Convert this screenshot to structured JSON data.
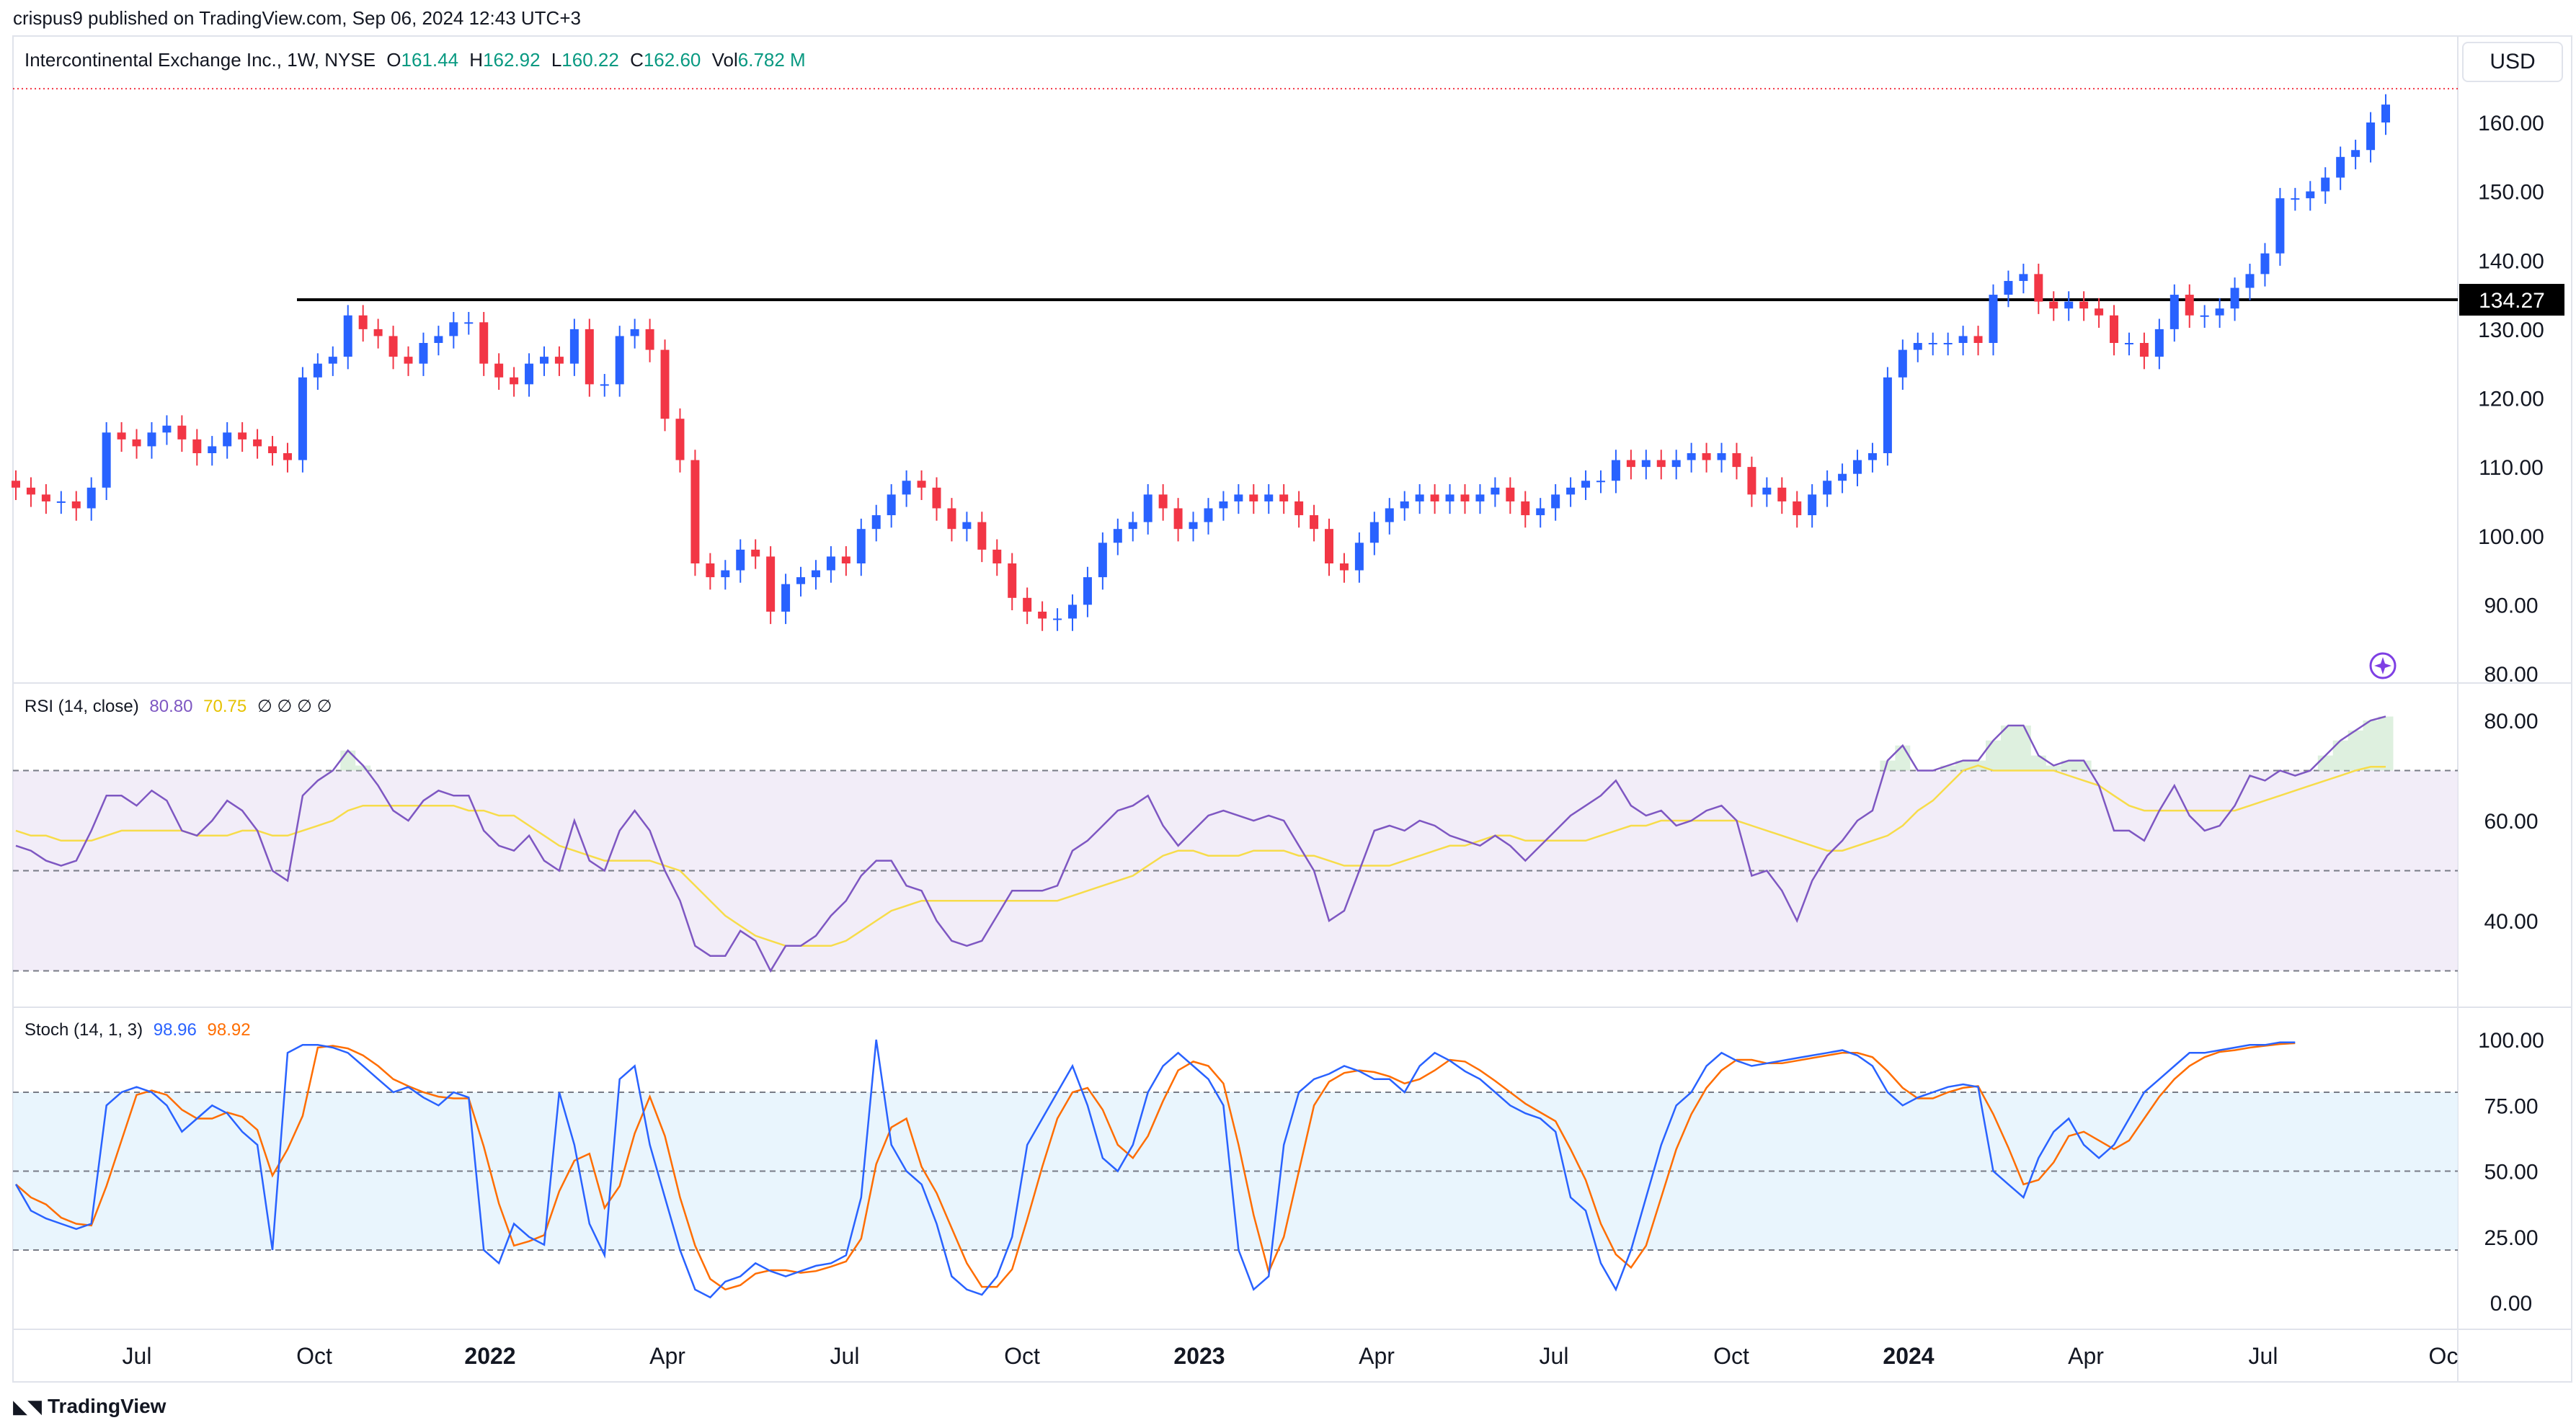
{
  "header": {
    "published": "crispus9 published on TradingView.com, Sep 06, 2024 12:43 UTC+3"
  },
  "symbol": {
    "name": "Intercontinental Exchange Inc., 1W, NYSE",
    "open_label": "O",
    "open": "161.44",
    "high_label": "H",
    "high": "162.92",
    "low_label": "L",
    "low": "160.22",
    "close_label": "C",
    "close": "162.60",
    "vol_label": "Vol",
    "vol": "6.782 M"
  },
  "currency": "USD",
  "price_axis_labels": [
    "160.00",
    "150.00",
    "140.00",
    "130.00",
    "120.00",
    "110.00",
    "100.00",
    "90.00",
    "80.00"
  ],
  "horizontal_line_label": "134.27",
  "rsi": {
    "title": "RSI (14, close)",
    "value": "80.80",
    "ma_value": "70.75",
    "extra": "∅ ∅ ∅ ∅",
    "axis_labels": [
      "80.00",
      "60.00",
      "40.00"
    ]
  },
  "stoch": {
    "title": "Stoch (14, 1, 3)",
    "k_value": "98.96",
    "d_value": "98.92",
    "axis_labels": [
      "100.00",
      "75.00",
      "50.00",
      "25.00",
      "0.00"
    ]
  },
  "time_axis_labels": [
    "Jul",
    "Oct",
    "2022",
    "Apr",
    "Jul",
    "Oct",
    "2023",
    "Apr",
    "Jul",
    "Oct",
    "2024",
    "Apr",
    "Jul",
    "Oc"
  ],
  "footer": {
    "brand": "TradingView",
    "logo_icon": "tradingview-logo-icon"
  },
  "colors": {
    "up": "#2962ff",
    "down": "#f23645",
    "rsi": "#7e57c2",
    "rsi_ma": "#f7dc4a",
    "stoch_k": "#2962ff",
    "stoch_d": "#ff6d00"
  },
  "chart_data": [
    {
      "type": "candlestick",
      "title": "Intercontinental Exchange Inc., 1W, NYSE",
      "ylim": [
        80,
        165
      ],
      "horizontal_line": 134.27,
      "x_start": "2021-05-03",
      "x_step_days": 7,
      "closes": [
        107,
        106,
        105,
        105,
        104,
        107,
        115,
        114,
        113,
        115,
        116,
        114,
        112,
        113,
        115,
        114,
        113,
        112,
        111,
        123,
        125,
        126,
        132,
        130,
        129,
        126,
        125,
        128,
        129,
        131,
        131,
        125,
        123,
        122,
        125,
        126,
        125,
        130,
        122,
        122,
        129,
        130,
        127,
        117,
        111,
        96,
        94,
        95,
        98,
        97,
        89,
        93,
        94,
        95,
        97,
        96,
        101,
        103,
        106,
        108,
        107,
        104,
        101,
        102,
        98,
        96,
        91,
        89,
        88,
        88,
        90,
        94,
        99,
        101,
        102,
        106,
        104,
        101,
        102,
        104,
        105,
        106,
        105,
        106,
        105,
        103,
        101,
        96,
        95,
        99,
        102,
        104,
        105,
        106,
        105,
        106,
        105,
        106,
        107,
        105,
        103,
        104,
        106,
        107,
        108,
        108,
        111,
        110,
        111,
        110,
        111,
        112,
        111,
        112,
        110,
        106,
        107,
        105,
        103,
        106,
        108,
        109,
        111,
        112,
        123,
        127,
        128,
        128,
        128,
        129,
        128,
        135,
        137,
        138,
        134,
        133,
        134,
        133,
        132,
        128,
        128,
        126,
        130,
        135,
        132,
        132,
        133,
        136,
        138,
        141,
        149,
        149,
        150,
        152,
        155,
        156,
        160,
        162.6
      ],
      "rsi": {
        "ylim": [
          25,
          85
        ],
        "overbought": 70,
        "middle": 50,
        "oversold": 30,
        "values": [
          55,
          54,
          52,
          51,
          52,
          58,
          65,
          65,
          63,
          66,
          64,
          58,
          57,
          60,
          64,
          62,
          58,
          50,
          48,
          65,
          68,
          70,
          74,
          71,
          67,
          62,
          60,
          64,
          66,
          65,
          65,
          58,
          55,
          54,
          57,
          52,
          50,
          60,
          52,
          50,
          58,
          62,
          58,
          50,
          44,
          35,
          33,
          33,
          38,
          36,
          30,
          35,
          35,
          37,
          41,
          44,
          49,
          52,
          52,
          47,
          46,
          40,
          36,
          35,
          36,
          41,
          46,
          46,
          46,
          47,
          54,
          56,
          59,
          62,
          63,
          65,
          59,
          55,
          58,
          61,
          62,
          61,
          60,
          61,
          60,
          55,
          50,
          40,
          42,
          50,
          58,
          59,
          58,
          60,
          59,
          57,
          56,
          55,
          57,
          55,
          52,
          55,
          58,
          61,
          63,
          65,
          68,
          63,
          61,
          62,
          59,
          60,
          62,
          63,
          60,
          49,
          50,
          46,
          40,
          48,
          53,
          56,
          60,
          62,
          72,
          75,
          70,
          70,
          71,
          72,
          72,
          76,
          79,
          79,
          73,
          71,
          72,
          72,
          67,
          58,
          58,
          56,
          62,
          67,
          61,
          58,
          59,
          63,
          69,
          68,
          70,
          69,
          70,
          73,
          76,
          78,
          80,
          80.8
        ]
      },
      "rsi_ma": [
        58,
        57,
        57,
        56,
        56,
        56,
        57,
        58,
        58,
        58,
        58,
        58,
        57,
        57,
        57,
        58,
        58,
        57,
        57,
        58,
        59,
        60,
        62,
        63,
        63,
        63,
        63,
        63,
        63,
        63,
        62,
        62,
        61,
        61,
        59,
        57,
        55,
        54,
        53,
        52,
        52,
        52,
        52,
        51,
        50,
        47,
        44,
        41,
        39,
        37,
        36,
        35,
        35,
        35,
        35,
        36,
        38,
        40,
        42,
        43,
        44,
        44,
        44,
        44,
        44,
        44,
        44,
        44,
        44,
        44,
        45,
        46,
        47,
        48,
        49,
        51,
        53,
        54,
        54,
        53,
        53,
        53,
        54,
        54,
        54,
        53,
        53,
        52,
        51,
        51,
        51,
        51,
        52,
        53,
        54,
        55,
        55,
        56,
        57,
        57,
        56,
        56,
        56,
        56,
        56,
        57,
        58,
        59,
        59,
        60,
        60,
        60,
        60,
        60,
        60,
        59,
        58,
        57,
        56,
        55,
        54,
        54,
        55,
        56,
        57,
        59,
        62,
        64,
        67,
        70,
        71,
        70,
        70,
        70,
        70,
        70,
        69,
        68,
        67,
        65,
        63,
        62,
        62,
        62,
        62,
        62,
        62,
        62,
        63,
        64,
        65,
        66,
        67,
        68,
        69,
        70,
        70.75,
        70.75
      ],
      "stoch_k": [
        45,
        35,
        32,
        30,
        28,
        30,
        75,
        80,
        82,
        80,
        75,
        65,
        70,
        75,
        72,
        65,
        60,
        20,
        95,
        98,
        98,
        97,
        95,
        90,
        85,
        80,
        82,
        78,
        75,
        80,
        78,
        20,
        15,
        30,
        25,
        22,
        80,
        60,
        30,
        18,
        85,
        90,
        60,
        40,
        20,
        5,
        2,
        8,
        10,
        15,
        12,
        10,
        12,
        14,
        15,
        18,
        40,
        100,
        60,
        50,
        45,
        30,
        10,
        5,
        3,
        10,
        25,
        60,
        70,
        80,
        90,
        75,
        55,
        50,
        60,
        80,
        90,
        95,
        90,
        85,
        75,
        20,
        5,
        10,
        60,
        80,
        85,
        87,
        90,
        88,
        85,
        85,
        80,
        90,
        95,
        92,
        88,
        85,
        80,
        75,
        72,
        70,
        65,
        40,
        35,
        15,
        5,
        20,
        40,
        60,
        75,
        80,
        90,
        95,
        92,
        90,
        91,
        92,
        93,
        94,
        95,
        96,
        94,
        90,
        80,
        75,
        78,
        80,
        82,
        83,
        82,
        50,
        45,
        40,
        55,
        65,
        70,
        60,
        55,
        60,
        70,
        80,
        85,
        90,
        95,
        95,
        96,
        97,
        98,
        98,
        99,
        98.96
      ]
    }
  ]
}
